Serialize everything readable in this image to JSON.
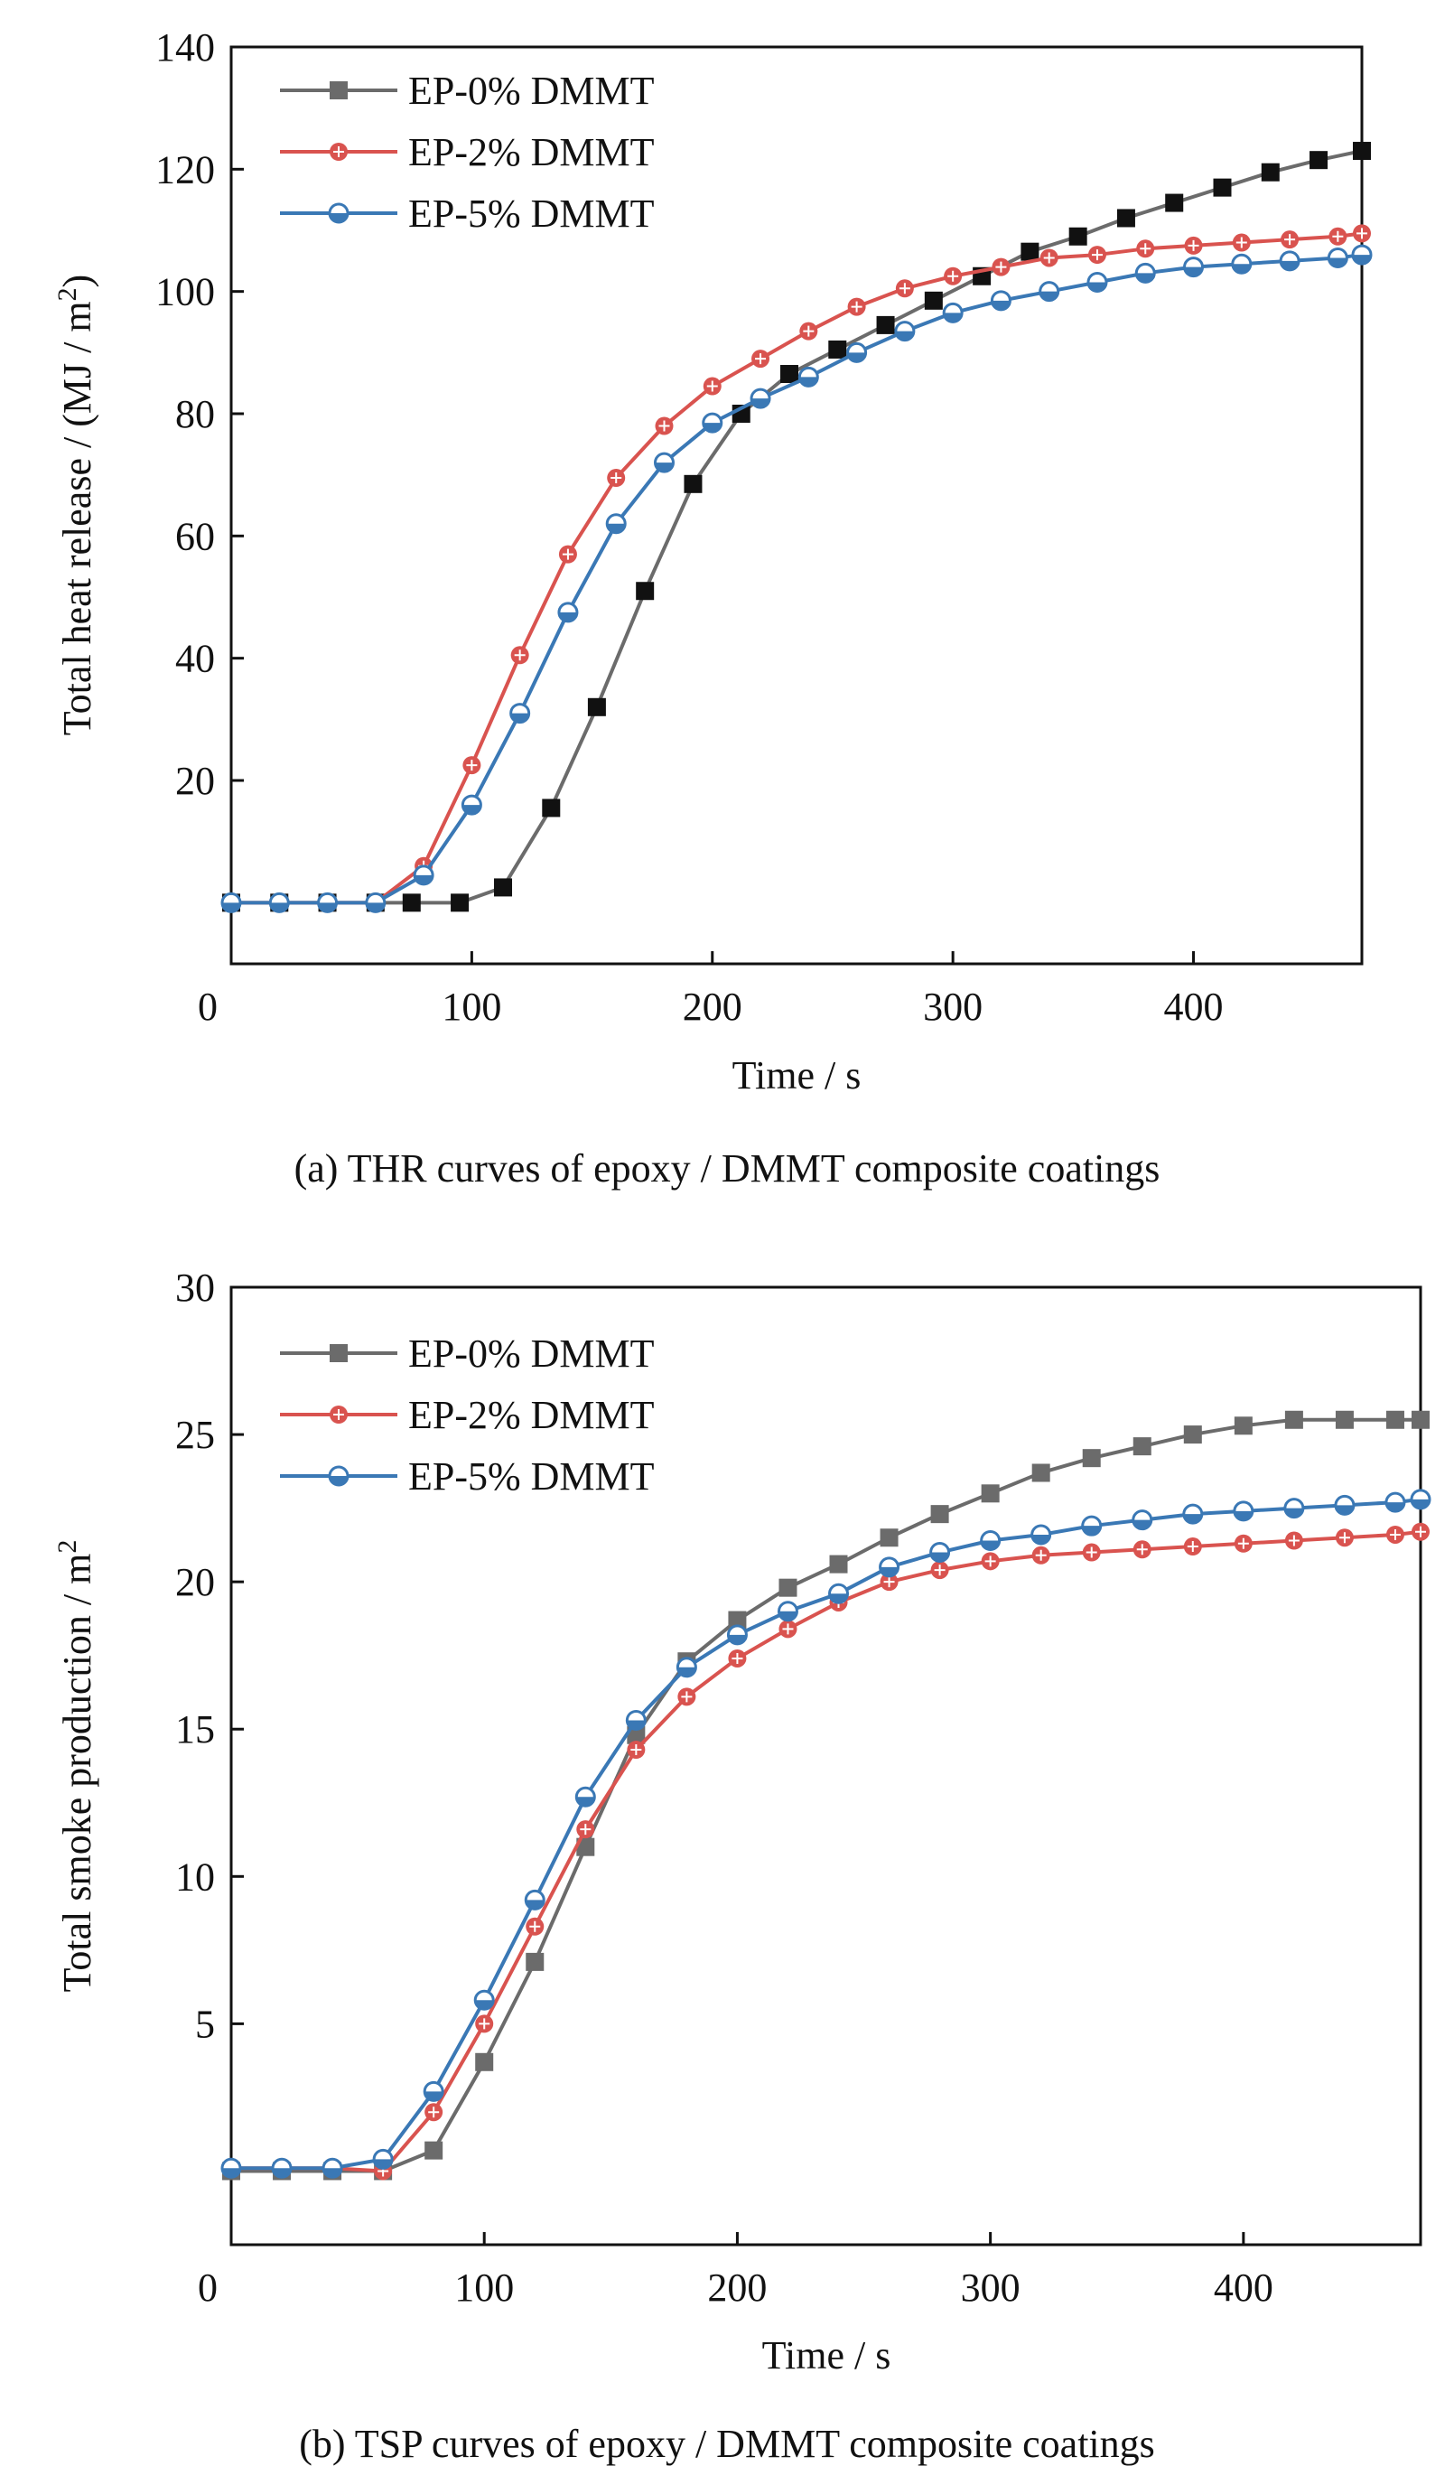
{
  "chart_data": [
    {
      "type": "line",
      "caption": "(a) THR curves of epoxy / DMMT composite coatings",
      "xlabel": "Time / s",
      "ylabel_main": "Total heat release / (MJ / m",
      "ylabel_sup": "2",
      "ylabel_end": ")",
      "xlim": [
        0,
        470
      ],
      "ylim": [
        -10,
        140
      ],
      "xticks": [
        0,
        100,
        200,
        300,
        400
      ],
      "yticks": [
        20,
        40,
        60,
        80,
        100,
        120,
        140
      ],
      "legend_position": "top-left",
      "series": [
        {
          "name": "EP-0% DMMT",
          "color": "#6b6b6b",
          "marker": "square-filled",
          "markerColor": "#111111",
          "x": [
            0,
            20,
            40,
            60,
            75,
            95,
            113,
            133,
            152,
            172,
            192,
            212,
            232,
            252,
            272,
            292,
            312,
            332,
            352,
            372,
            392,
            412,
            432,
            452,
            470
          ],
          "y": [
            0,
            0,
            0,
            0,
            0,
            0,
            2.5,
            15.5,
            32,
            51,
            68.5,
            80,
            86.5,
            90.5,
            94.5,
            98.5,
            102.5,
            106.5,
            109,
            112,
            114.5,
            117,
            119.5,
            121.5,
            123
          ]
        },
        {
          "name": "EP-2% DMMT",
          "color": "#d9534f",
          "marker": "circle-star",
          "markerColor": "#d9534f",
          "x": [
            0,
            20,
            40,
            60,
            80,
            100,
            120,
            140,
            160,
            180,
            200,
            220,
            240,
            260,
            280,
            300,
            320,
            340,
            360,
            380,
            400,
            420,
            440,
            460,
            470
          ],
          "y": [
            0,
            0,
            0,
            0,
            6,
            22.5,
            40.5,
            57,
            69.5,
            78,
            84.5,
            89,
            93.5,
            97.5,
            100.5,
            102.5,
            104,
            105.5,
            106,
            107,
            107.5,
            108,
            108.5,
            109,
            109.5
          ]
        },
        {
          "name": "EP-5% DMMT",
          "color": "#3a78b5",
          "marker": "circle-half",
          "markerColor": "#3a78b5",
          "x": [
            0,
            20,
            40,
            60,
            80,
            100,
            120,
            140,
            160,
            180,
            200,
            220,
            240,
            260,
            280,
            300,
            320,
            340,
            360,
            380,
            400,
            420,
            440,
            460,
            470
          ],
          "y": [
            0,
            0,
            0,
            0,
            4.5,
            16,
            31,
            47.5,
            62,
            72,
            78.5,
            82.5,
            86,
            90,
            93.5,
            96.5,
            98.5,
            100,
            101.5,
            103,
            104,
            104.5,
            105,
            105.5,
            106
          ]
        }
      ]
    },
    {
      "type": "line",
      "caption": "(b) TSP curves of epoxy / DMMT composite coatings",
      "xlabel": "Time / s",
      "ylabel_main": "Total smoke production / m",
      "ylabel_sup": "2",
      "ylabel_end": "",
      "xlim": [
        0,
        470
      ],
      "ylim": [
        -2.5,
        30
      ],
      "xticks": [
        0,
        100,
        200,
        300,
        400
      ],
      "yticks": [
        5,
        10,
        15,
        20,
        25,
        30
      ],
      "legend_position": "top-left",
      "series": [
        {
          "name": "EP-0% DMMT",
          "color": "#6b6b6b",
          "marker": "square-filled",
          "markerColor": "#6b6b6b",
          "x": [
            0,
            20,
            40,
            60,
            80,
            100,
            120,
            140,
            160,
            180,
            200,
            220,
            240,
            260,
            280,
            300,
            320,
            340,
            360,
            380,
            400,
            420,
            440,
            460,
            470
          ],
          "y": [
            0,
            0,
            0,
            0,
            0.7,
            3.7,
            7.1,
            11,
            14.8,
            17.3,
            18.7,
            19.8,
            20.6,
            21.5,
            22.3,
            23,
            23.7,
            24.2,
            24.6,
            25,
            25.3,
            25.5,
            25.5,
            25.5,
            25.5
          ]
        },
        {
          "name": "EP-2% DMMT",
          "color": "#d9534f",
          "marker": "circle-star",
          "markerColor": "#d9534f",
          "x": [
            0,
            20,
            40,
            60,
            80,
            100,
            120,
            140,
            160,
            180,
            200,
            220,
            240,
            260,
            280,
            300,
            320,
            340,
            360,
            380,
            400,
            420,
            440,
            460,
            470
          ],
          "y": [
            0.1,
            0.1,
            0.1,
            0,
            2,
            5,
            8.3,
            11.6,
            14.3,
            16.1,
            17.4,
            18.4,
            19.3,
            20,
            20.4,
            20.7,
            20.9,
            21,
            21.1,
            21.2,
            21.3,
            21.4,
            21.5,
            21.6,
            21.7
          ]
        },
        {
          "name": "EP-5% DMMT",
          "color": "#3a78b5",
          "marker": "circle-half",
          "markerColor": "#3a78b5",
          "x": [
            0,
            20,
            40,
            60,
            80,
            100,
            120,
            140,
            160,
            180,
            200,
            220,
            240,
            260,
            280,
            300,
            320,
            340,
            360,
            380,
            400,
            420,
            440,
            460,
            470
          ],
          "y": [
            0.1,
            0.1,
            0.1,
            0.4,
            2.7,
            5.8,
            9.2,
            12.7,
            15.3,
            17.1,
            18.2,
            19,
            19.6,
            20.5,
            21,
            21.4,
            21.6,
            21.9,
            22.1,
            22.3,
            22.4,
            22.5,
            22.6,
            22.7,
            22.8
          ]
        }
      ]
    }
  ]
}
